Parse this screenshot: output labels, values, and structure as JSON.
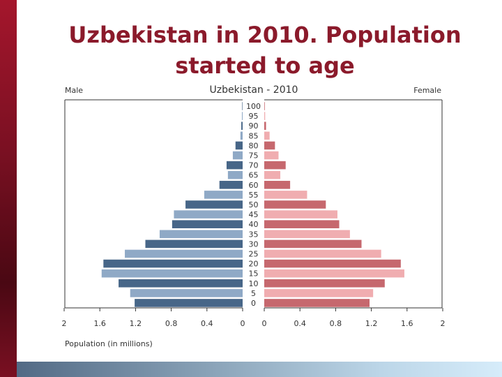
{
  "slide": {
    "title_line1": "Uzbekistan in 2010. Population",
    "title_line2": "started to age"
  },
  "chart_data": {
    "type": "bar",
    "title": "Uzbekistan - 2010",
    "left_label": "Male",
    "right_label": "Female",
    "xlabel": "Population (in millions)",
    "xlim": [
      0,
      2
    ],
    "x_ticks_left": [
      "2",
      "1.6",
      "1.2",
      "0.8",
      "0.4",
      "0"
    ],
    "x_ticks_right": [
      "0",
      "0.4",
      "0.8",
      "1.2",
      "1.6",
      "2"
    ],
    "tick_values": [
      0,
      0.4,
      0.8,
      1.2,
      1.6,
      2
    ],
    "categories": [
      "100",
      "95",
      "90",
      "85",
      "80",
      "75",
      "70",
      "65",
      "60",
      "55",
      "50",
      "45",
      "40",
      "35",
      "30",
      "25",
      "20",
      "15",
      "10",
      "5",
      "0"
    ],
    "series": [
      {
        "name": "Male",
        "values": [
          0.005,
          0.008,
          0.015,
          0.025,
          0.08,
          0.11,
          0.18,
          0.165,
          0.26,
          0.43,
          0.64,
          0.77,
          0.79,
          0.93,
          1.09,
          1.32,
          1.56,
          1.58,
          1.39,
          1.26,
          1.21
        ]
      },
      {
        "name": "Female",
        "values": [
          0.006,
          0.01,
          0.02,
          0.06,
          0.12,
          0.16,
          0.24,
          0.18,
          0.29,
          0.48,
          0.69,
          0.82,
          0.84,
          0.96,
          1.09,
          1.31,
          1.53,
          1.57,
          1.35,
          1.22,
          1.18
        ]
      }
    ],
    "colors": {
      "male_dark": "#476688",
      "male_light": "#8fa9c6",
      "female_dark": "#c6686e",
      "female_light": "#f0adb0",
      "axis": "#333333"
    }
  }
}
